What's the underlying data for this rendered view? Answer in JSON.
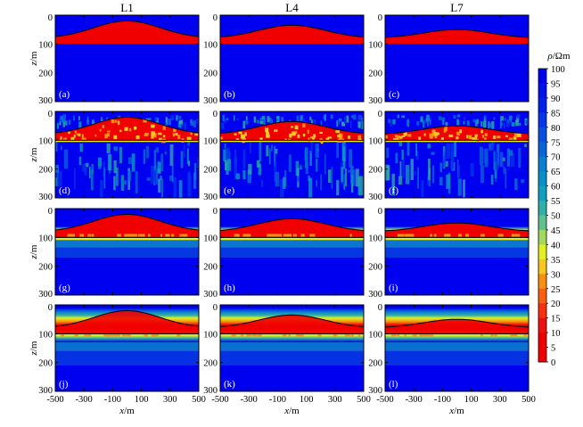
{
  "chart_data": {
    "type": "heatmap",
    "columns": [
      "L1",
      "L4",
      "L7"
    ],
    "rows": [
      {
        "labels": [
          "(a)",
          "(b)",
          "(c)"
        ],
        "kind": "true model"
      },
      {
        "labels": [
          "(d)",
          "(e)",
          "(f)"
        ],
        "kind": "inversion"
      },
      {
        "labels": [
          "(g)",
          "(h)",
          "(i)"
        ],
        "kind": "inversion"
      },
      {
        "labels": [
          "(j)",
          "(k)",
          "(l)"
        ],
        "kind": "inversion"
      }
    ],
    "xlabel": "x/m",
    "ylabel": "z/m",
    "xticks": [
      "-500",
      "-300",
      "-100",
      "100",
      "300",
      "500"
    ],
    "yticks": [
      "0",
      "100",
      "200",
      "300"
    ],
    "xlim": [
      -500,
      500
    ],
    "ylim": [
      0,
      300
    ],
    "model": {
      "layer_base_depth_m": 100,
      "surface_top_depth_m": [
        20,
        35,
        50
      ],
      "edge_depth_m": 80
    },
    "colorbar": {
      "title": "ρ/Ωm",
      "labels": [
        "100",
        "95",
        "90",
        "85",
        "80",
        "75",
        "70",
        "65",
        "60",
        "55",
        "50",
        "45",
        "40",
        "35",
        "30",
        "25",
        "20",
        "15",
        "10",
        "5",
        "0"
      ],
      "colors": [
        "#0000f0",
        "#0010f0",
        "#0020ee",
        "#0636e8",
        "#0a50e0",
        "#0a66d8",
        "#0a7ed0",
        "#0890c8",
        "#10a0c0",
        "#30b0a8",
        "#60c090",
        "#a0d860",
        "#e0f020",
        "#f8c820",
        "#f89010",
        "#f86010",
        "#f83010",
        "#f01010",
        "#f00000",
        "#f00000"
      ]
    }
  }
}
